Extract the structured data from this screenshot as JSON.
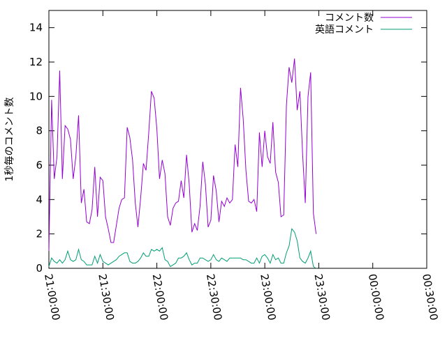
{
  "chart_data": {
    "type": "line",
    "title": "",
    "xlabel": "",
    "ylabel": "1秒毎のコメント数",
    "ylim": [
      0,
      15
    ],
    "yticks": [
      0,
      2,
      4,
      6,
      8,
      10,
      12,
      14
    ],
    "ytick_labels": [
      "0",
      "2",
      "4",
      "6",
      "8",
      "10",
      "12",
      "14"
    ],
    "xlim": [
      "21:00:00",
      "00:30:00"
    ],
    "xticks": [
      "21:00:00",
      "21:30:00",
      "22:00:00",
      "22:30:00",
      "23:00:00",
      "23:30:00",
      "00:00:00",
      "00:30:00"
    ],
    "xtick_labels": [
      "21:00:00",
      "21:30:00",
      "22:00:00",
      "22:30:00",
      "23:00:00",
      "23:30:00",
      "00:00:00",
      "00:30:00"
    ],
    "x_step_minutes": 1.5,
    "x_start": "21:00:00",
    "grid": false,
    "legend_position": "top-right",
    "series": [
      {
        "name": "コメント数",
        "color": "#9400d3",
        "values": [
          1.0,
          9.8,
          5.2,
          6.5,
          11.5,
          5.2,
          8.3,
          8.1,
          7.5,
          5.2,
          6.5,
          8.9,
          3.8,
          4.6,
          2.7,
          2.6,
          3.4,
          5.9,
          3.0,
          5.3,
          5.1,
          3.0,
          2.3,
          1.5,
          1.5,
          2.5,
          3.5,
          4.0,
          4.1,
          8.2,
          7.6,
          6.3,
          3.8,
          2.4,
          4.1,
          6.1,
          5.7,
          7.9,
          10.3,
          9.9,
          8.1,
          5.2,
          6.3,
          5.5,
          3.0,
          2.5,
          3.5,
          3.8,
          3.9,
          5.1,
          4.1,
          6.6,
          4.9,
          2.1,
          2.6,
          2.2,
          3.6,
          6.2,
          4.9,
          2.4,
          2.8,
          5.4,
          4.5,
          2.7,
          3.9,
          3.6,
          4.1,
          3.8,
          4.0,
          7.2,
          5.9,
          10.5,
          8.7,
          5.7,
          3.9,
          3.8,
          4.0,
          3.3,
          7.9,
          5.9,
          8.0,
          6.5,
          6.1,
          8.5,
          5.6,
          5.0,
          3.0,
          3.1,
          9.5,
          11.7,
          10.8,
          12.2,
          9.2,
          10.3,
          6.7,
          3.8,
          10.0,
          11.4,
          3.2,
          2.0
        ]
      },
      {
        "name": "英語コメント",
        "color": "#009e73",
        "values": [
          0.1,
          0.6,
          0.4,
          0.3,
          0.5,
          0.3,
          0.5,
          1.0,
          0.5,
          0.4,
          0.5,
          1.1,
          0.5,
          0.4,
          0.2,
          0.2,
          0.2,
          0.7,
          0.3,
          0.8,
          0.4,
          0.3,
          0.2,
          0.3,
          0.4,
          0.5,
          0.7,
          0.8,
          0.9,
          0.9,
          0.4,
          0.3,
          0.3,
          0.4,
          0.6,
          0.9,
          0.7,
          0.7,
          1.1,
          1.0,
          1.1,
          1.0,
          1.2,
          0.5,
          0.4,
          0.1,
          0.2,
          0.3,
          0.6,
          0.6,
          0.7,
          0.9,
          0.5,
          0.2,
          0.3,
          0.3,
          0.6,
          0.6,
          0.5,
          0.4,
          0.5,
          0.8,
          0.5,
          0.4,
          0.6,
          0.5,
          0.4,
          0.6,
          0.6,
          0.6,
          0.6,
          0.6,
          0.5,
          0.5,
          0.4,
          0.3,
          0.3,
          0.6,
          0.3,
          0.7,
          0.8,
          0.6,
          0.3,
          0.8,
          0.5,
          0.6,
          0.3,
          0.3,
          0.9,
          1.3,
          2.3,
          2.1,
          1.6,
          0.6,
          0.4,
          0.3,
          0.6,
          1.0,
          0.1,
          0.0
        ]
      }
    ]
  }
}
